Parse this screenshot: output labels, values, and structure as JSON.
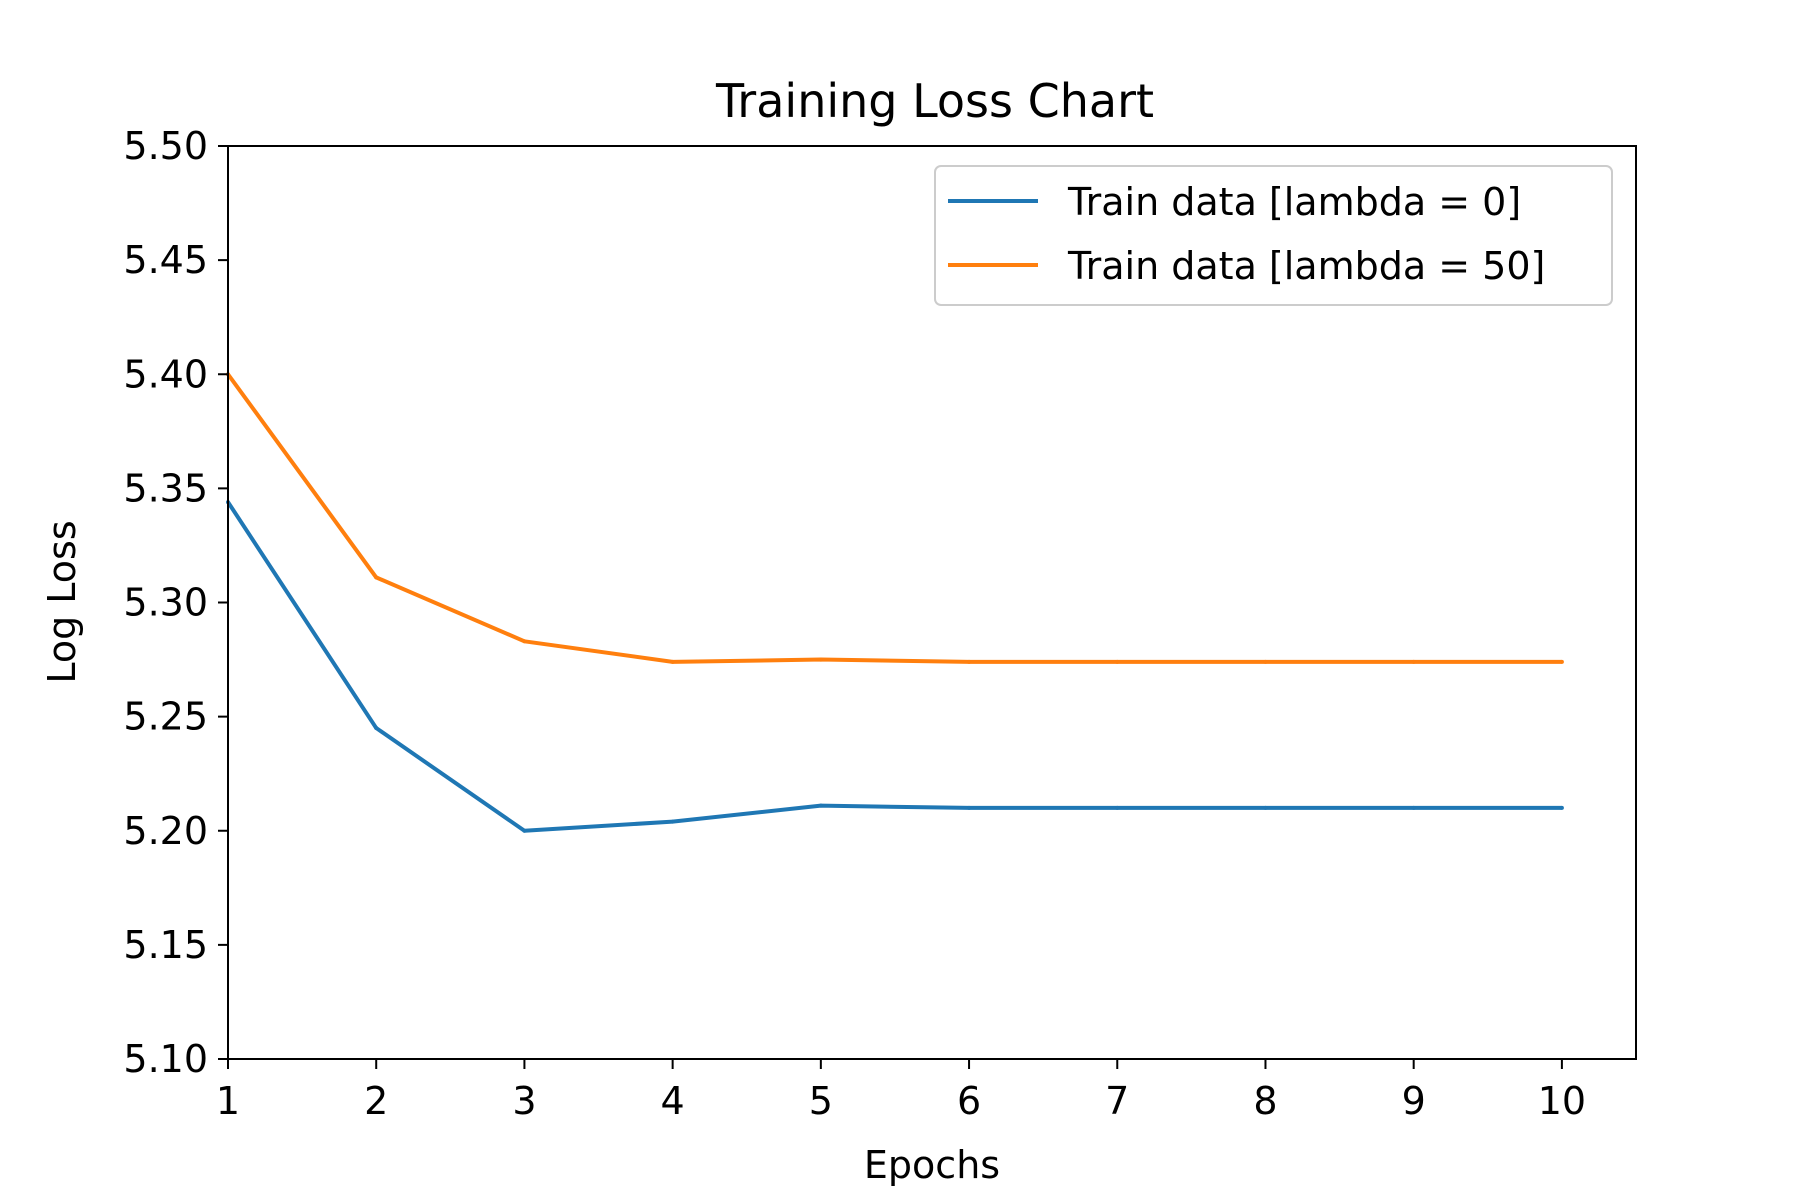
{
  "chart_data": {
    "type": "line",
    "title": "Training Loss Chart",
    "xlabel": "Epochs",
    "ylabel": "Log Loss",
    "xlim": [
      1,
      10.5
    ],
    "ylim": [
      5.1,
      5.5
    ],
    "x": [
      1,
      2,
      3,
      4,
      5,
      6,
      7,
      8,
      9,
      10
    ],
    "x_ticks": [
      "1",
      "2",
      "3",
      "4",
      "5",
      "6",
      "7",
      "8",
      "9",
      "10"
    ],
    "y_ticks": [
      "5.10",
      "5.15",
      "5.20",
      "5.25",
      "5.30",
      "5.35",
      "5.40",
      "5.45",
      "5.50"
    ],
    "grid": false,
    "legend_position": "top-right",
    "series": [
      {
        "name": "Train data [lambda = 0]",
        "color": "#1f77b4",
        "values": [
          5.344,
          5.245,
          5.2,
          5.204,
          5.211,
          5.21,
          5.21,
          5.21,
          5.21,
          5.21
        ]
      },
      {
        "name": "Train data [lambda = 50]",
        "color": "#ff7f0e",
        "values": [
          5.4,
          5.311,
          5.283,
          5.274,
          5.275,
          5.274,
          5.274,
          5.274,
          5.274,
          5.274
        ]
      }
    ]
  }
}
